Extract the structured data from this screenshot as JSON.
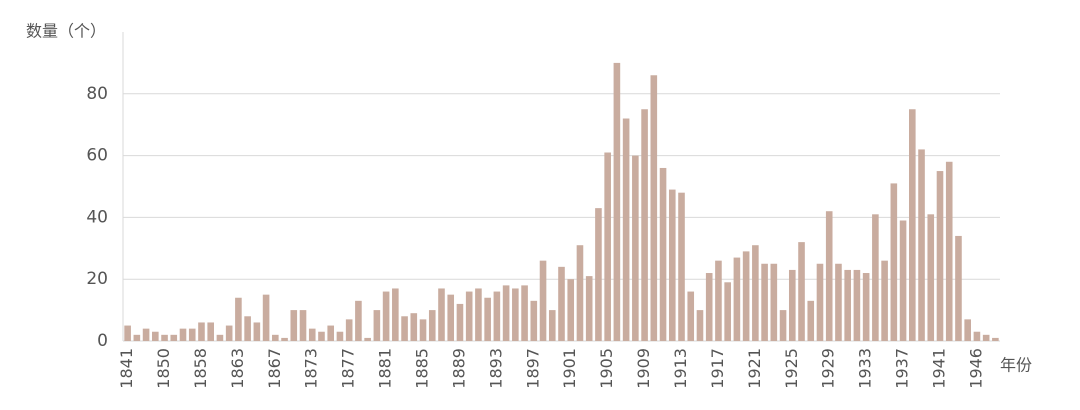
{
  "chart_data": {
    "type": "bar",
    "y_label": "数量（个）",
    "x_label": "年份",
    "categories": [
      "1841",
      null,
      null,
      null,
      "1850",
      null,
      null,
      null,
      "1858",
      null,
      null,
      null,
      "1863",
      null,
      null,
      null,
      "1867",
      null,
      null,
      null,
      "1873",
      null,
      null,
      null,
      "1877",
      null,
      null,
      null,
      "1881",
      null,
      null,
      null,
      "1885",
      null,
      null,
      null,
      "1889",
      null,
      null,
      null,
      "1893",
      null,
      null,
      null,
      "1897",
      null,
      null,
      null,
      "1901",
      null,
      null,
      null,
      "1905",
      null,
      null,
      null,
      "1909",
      null,
      null,
      null,
      "1913",
      null,
      null,
      null,
      "1917",
      null,
      null,
      null,
      "1921",
      null,
      null,
      null,
      "1925",
      null,
      null,
      null,
      "1929",
      null,
      null,
      null,
      "1933",
      null,
      null,
      null,
      "1937",
      null,
      null,
      null,
      "1941",
      null,
      null,
      null,
      "1946",
      null,
      null
    ],
    "values": [
      5,
      2,
      4,
      3,
      2,
      2,
      4,
      4,
      6,
      6,
      2,
      5,
      14,
      8,
      6,
      15,
      2,
      1,
      10,
      10,
      4,
      3,
      5,
      3,
      7,
      13,
      1,
      10,
      16,
      17,
      8,
      9,
      7,
      10,
      17,
      15,
      12,
      16,
      17,
      14,
      16,
      18,
      17,
      18,
      13,
      26,
      10,
      24,
      20,
      31,
      21,
      43,
      61,
      90,
      72,
      60,
      75,
      86,
      56,
      49,
      48,
      16,
      10,
      22,
      26,
      19,
      27,
      29,
      31,
      25,
      25,
      10,
      23,
      32,
      13,
      25,
      42,
      25,
      23,
      23,
      22,
      41,
      26,
      51,
      39,
      75,
      62,
      41,
      55,
      58,
      34,
      7,
      3,
      2,
      1
    ],
    "color": "#c9ac9f",
    "ylim": [
      0,
      100
    ],
    "yticks": [
      0,
      20,
      40,
      60,
      80
    ],
    "grid": true
  }
}
